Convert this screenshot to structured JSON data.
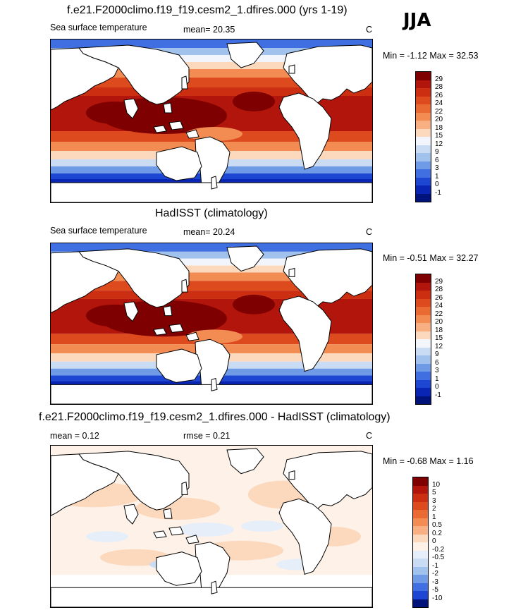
{
  "season": "JJA",
  "panels": [
    {
      "title": "f.e21.F2000climo.f19_f19.cesm2_1.dfires.000 (yrs 1-19)",
      "left_label": "Sea surface temperature",
      "mid_label": "mean=  20.35",
      "units": "C",
      "minmax": "Min =  -1.12 Max =  32.53"
    },
    {
      "title": "HadISST (climatology)",
      "left_label": "Sea surface temperature",
      "mid_label": "mean=  20.24",
      "units": "C",
      "minmax": "Min =  -0.51 Max =  32.27"
    },
    {
      "title": "f.e21.F2000climo.f19_f19.cesm2_1.dfires.000 - HadISST (climatology)",
      "left_label": "mean =   0.12",
      "mid_label": "rmse =   0.21",
      "units": "C",
      "minmax": "Min =  -0.68 Max =   1.16"
    }
  ],
  "chart_data": [
    {
      "type": "heatmap",
      "title": "f.e21.F2000climo.f19_f19.cesm2_1.dfires.000 (yrs 1-19)",
      "variable": "Sea surface temperature",
      "units": "C",
      "mean": 20.35,
      "min": -1.12,
      "max": 32.53,
      "colorbar_levels": [
        "29",
        "28",
        "26",
        "24",
        "22",
        "20",
        "18",
        "15",
        "12",
        "9",
        "6",
        "3",
        "1",
        "0",
        "-1"
      ],
      "colorbar_colors": [
        "#7f0000",
        "#b2150c",
        "#cc2e12",
        "#dd4a1e",
        "#ea6a34",
        "#f38c52",
        "#f8b083",
        "#fcd8bd",
        "#f2f5fb",
        "#c9dcf3",
        "#a1c2ec",
        "#6f9be6",
        "#3f6fe0",
        "#1d46d2",
        "#0825b4",
        "#00137a"
      ]
    },
    {
      "type": "heatmap",
      "title": "HadISST (climatology)",
      "variable": "Sea surface temperature",
      "units": "C",
      "mean": 20.24,
      "min": -0.51,
      "max": 32.27,
      "colorbar_levels": [
        "29",
        "28",
        "26",
        "24",
        "22",
        "20",
        "18",
        "15",
        "12",
        "9",
        "6",
        "3",
        "1",
        "0",
        "-1"
      ],
      "colorbar_colors": [
        "#7f0000",
        "#b2150c",
        "#cc2e12",
        "#dd4a1e",
        "#ea6a34",
        "#f38c52",
        "#f8b083",
        "#fcd8bd",
        "#f2f5fb",
        "#c9dcf3",
        "#a1c2ec",
        "#6f9be6",
        "#3f6fe0",
        "#1d46d2",
        "#0825b4",
        "#00137a"
      ]
    },
    {
      "type": "heatmap",
      "title": "f.e21.F2000climo.f19_f19.cesm2_1.dfires.000 - HadISST (climatology)",
      "units": "C",
      "mean": 0.12,
      "rmse": 0.21,
      "min": -0.68,
      "max": 1.16,
      "colorbar_levels": [
        "10",
        "5",
        "3",
        "2",
        "1",
        "0.5",
        "0.2",
        "0",
        "-0.2",
        "-0.5",
        "-1",
        "-2",
        "-3",
        "-5",
        "-10"
      ],
      "colorbar_colors": [
        "#7f0000",
        "#b2150c",
        "#cc2e12",
        "#dd4a1e",
        "#ea6a34",
        "#f38c52",
        "#f8b083",
        "#fcd8bd",
        "#fdf1e8",
        "#e6eefa",
        "#c9dcf3",
        "#a1c2ec",
        "#6f9be6",
        "#3f6fe0",
        "#1d46d2",
        "#00137a"
      ]
    }
  ]
}
